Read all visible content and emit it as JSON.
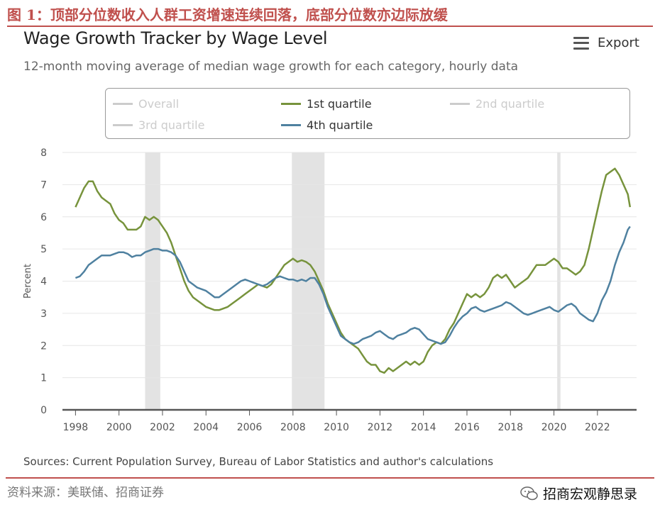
{
  "figure": {
    "title": "图 1：顶部分位数收入人群工资增速连续回落，底部分位数亦边际放缓",
    "source_note": "资料来源：美联储、招商证券",
    "watermark": "招商宏观静思录"
  },
  "toolbar": {
    "export_label": "Export"
  },
  "colors": {
    "q1": "#77933c",
    "q4": "#4f81a0",
    "recession": "#e3e3e3",
    "inactive": "#cccccc",
    "accent": "#c0504d"
  },
  "chart_data": {
    "type": "line",
    "title": "Wage Growth Tracker by Wage Level",
    "subtitle": "12-month moving average of median wage growth for each category, hourly data",
    "ylabel": "Percent",
    "xlabel": "",
    "ylim": [
      0,
      8
    ],
    "xlim": [
      1997.4,
      2023.8
    ],
    "yticks": [
      0,
      1,
      2,
      3,
      4,
      5,
      6,
      7,
      8
    ],
    "xticks": [
      1998,
      2000,
      2002,
      2004,
      2006,
      2008,
      2010,
      2012,
      2014,
      2016,
      2018,
      2020,
      2022
    ],
    "grid": true,
    "source": "Sources: Current Population Survey, Bureau of Labor Statistics and author's calculations",
    "recessions": [
      [
        2001.2,
        2001.9
      ],
      [
        2007.95,
        2009.45
      ],
      [
        2020.15,
        2020.3
      ]
    ],
    "legend": [
      {
        "name": "Overall",
        "active": false
      },
      {
        "name": "1st quartile",
        "active": true
      },
      {
        "name": "2nd quartile",
        "active": false
      },
      {
        "name": "3rd quartile",
        "active": false
      },
      {
        "name": "4th quartile",
        "active": true
      }
    ],
    "series": [
      {
        "name": "1st quartile",
        "points": [
          [
            1998.0,
            6.3
          ],
          [
            1998.2,
            6.6
          ],
          [
            1998.4,
            6.9
          ],
          [
            1998.6,
            7.1
          ],
          [
            1998.8,
            7.1
          ],
          [
            1999.0,
            6.8
          ],
          [
            1999.2,
            6.6
          ],
          [
            1999.4,
            6.5
          ],
          [
            1999.6,
            6.4
          ],
          [
            1999.8,
            6.1
          ],
          [
            2000.0,
            5.9
          ],
          [
            2000.2,
            5.8
          ],
          [
            2000.4,
            5.6
          ],
          [
            2000.6,
            5.6
          ],
          [
            2000.8,
            5.6
          ],
          [
            2001.0,
            5.7
          ],
          [
            2001.2,
            6.0
          ],
          [
            2001.4,
            5.9
          ],
          [
            2001.6,
            6.0
          ],
          [
            2001.8,
            5.9
          ],
          [
            2002.0,
            5.7
          ],
          [
            2002.2,
            5.5
          ],
          [
            2002.4,
            5.2
          ],
          [
            2002.6,
            4.8
          ],
          [
            2002.8,
            4.4
          ],
          [
            2003.0,
            4.0
          ],
          [
            2003.2,
            3.7
          ],
          [
            2003.4,
            3.5
          ],
          [
            2003.6,
            3.4
          ],
          [
            2003.8,
            3.3
          ],
          [
            2004.0,
            3.2
          ],
          [
            2004.2,
            3.15
          ],
          [
            2004.4,
            3.1
          ],
          [
            2004.6,
            3.1
          ],
          [
            2004.8,
            3.15
          ],
          [
            2005.0,
            3.2
          ],
          [
            2005.2,
            3.3
          ],
          [
            2005.4,
            3.4
          ],
          [
            2005.6,
            3.5
          ],
          [
            2005.8,
            3.6
          ],
          [
            2006.0,
            3.7
          ],
          [
            2006.2,
            3.8
          ],
          [
            2006.4,
            3.9
          ],
          [
            2006.6,
            3.85
          ],
          [
            2006.8,
            3.8
          ],
          [
            2007.0,
            3.9
          ],
          [
            2007.2,
            4.1
          ],
          [
            2007.4,
            4.3
          ],
          [
            2007.6,
            4.5
          ],
          [
            2007.8,
            4.6
          ],
          [
            2008.0,
            4.7
          ],
          [
            2008.2,
            4.6
          ],
          [
            2008.4,
            4.65
          ],
          [
            2008.6,
            4.6
          ],
          [
            2008.8,
            4.5
          ],
          [
            2009.0,
            4.3
          ],
          [
            2009.2,
            4.0
          ],
          [
            2009.4,
            3.7
          ],
          [
            2009.6,
            3.3
          ],
          [
            2009.8,
            3.0
          ],
          [
            2010.0,
            2.7
          ],
          [
            2010.2,
            2.4
          ],
          [
            2010.4,
            2.2
          ],
          [
            2010.6,
            2.1
          ],
          [
            2010.8,
            2.0
          ],
          [
            2011.0,
            1.9
          ],
          [
            2011.2,
            1.7
          ],
          [
            2011.4,
            1.5
          ],
          [
            2011.6,
            1.4
          ],
          [
            2011.8,
            1.4
          ],
          [
            2012.0,
            1.2
          ],
          [
            2012.2,
            1.15
          ],
          [
            2012.4,
            1.3
          ],
          [
            2012.6,
            1.2
          ],
          [
            2012.8,
            1.3
          ],
          [
            2013.0,
            1.4
          ],
          [
            2013.2,
            1.5
          ],
          [
            2013.4,
            1.4
          ],
          [
            2013.6,
            1.5
          ],
          [
            2013.8,
            1.4
          ],
          [
            2014.0,
            1.5
          ],
          [
            2014.2,
            1.8
          ],
          [
            2014.4,
            2.0
          ],
          [
            2014.6,
            2.1
          ],
          [
            2014.8,
            2.05
          ],
          [
            2015.0,
            2.2
          ],
          [
            2015.2,
            2.5
          ],
          [
            2015.4,
            2.7
          ],
          [
            2015.6,
            3.0
          ],
          [
            2015.8,
            3.3
          ],
          [
            2016.0,
            3.6
          ],
          [
            2016.2,
            3.5
          ],
          [
            2016.4,
            3.6
          ],
          [
            2016.6,
            3.5
          ],
          [
            2016.8,
            3.6
          ],
          [
            2017.0,
            3.8
          ],
          [
            2017.2,
            4.1
          ],
          [
            2017.4,
            4.2
          ],
          [
            2017.6,
            4.1
          ],
          [
            2017.8,
            4.2
          ],
          [
            2018.0,
            4.0
          ],
          [
            2018.2,
            3.8
          ],
          [
            2018.4,
            3.9
          ],
          [
            2018.6,
            4.0
          ],
          [
            2018.8,
            4.1
          ],
          [
            2019.0,
            4.3
          ],
          [
            2019.2,
            4.5
          ],
          [
            2019.4,
            4.5
          ],
          [
            2019.6,
            4.5
          ],
          [
            2019.8,
            4.6
          ],
          [
            2020.0,
            4.7
          ],
          [
            2020.2,
            4.6
          ],
          [
            2020.4,
            4.4
          ],
          [
            2020.6,
            4.4
          ],
          [
            2020.8,
            4.3
          ],
          [
            2021.0,
            4.2
          ],
          [
            2021.2,
            4.3
          ],
          [
            2021.4,
            4.5
          ],
          [
            2021.6,
            5.0
          ],
          [
            2021.8,
            5.6
          ],
          [
            2022.0,
            6.2
          ],
          [
            2022.2,
            6.8
          ],
          [
            2022.4,
            7.3
          ],
          [
            2022.6,
            7.4
          ],
          [
            2022.8,
            7.5
          ],
          [
            2023.0,
            7.3
          ],
          [
            2023.2,
            7.0
          ],
          [
            2023.4,
            6.7
          ],
          [
            2023.5,
            6.3
          ]
        ]
      },
      {
        "name": "4th quartile",
        "points": [
          [
            1998.0,
            4.1
          ],
          [
            1998.2,
            4.15
          ],
          [
            1998.4,
            4.3
          ],
          [
            1998.6,
            4.5
          ],
          [
            1998.8,
            4.6
          ],
          [
            1999.0,
            4.7
          ],
          [
            1999.2,
            4.8
          ],
          [
            1999.4,
            4.8
          ],
          [
            1999.6,
            4.8
          ],
          [
            1999.8,
            4.85
          ],
          [
            2000.0,
            4.9
          ],
          [
            2000.2,
            4.9
          ],
          [
            2000.4,
            4.85
          ],
          [
            2000.6,
            4.75
          ],
          [
            2000.8,
            4.8
          ],
          [
            2001.0,
            4.8
          ],
          [
            2001.2,
            4.9
          ],
          [
            2001.4,
            4.95
          ],
          [
            2001.6,
            5.0
          ],
          [
            2001.8,
            5.0
          ],
          [
            2002.0,
            4.95
          ],
          [
            2002.2,
            4.95
          ],
          [
            2002.4,
            4.9
          ],
          [
            2002.6,
            4.8
          ],
          [
            2002.8,
            4.6
          ],
          [
            2003.0,
            4.3
          ],
          [
            2003.2,
            4.0
          ],
          [
            2003.4,
            3.9
          ],
          [
            2003.6,
            3.8
          ],
          [
            2003.8,
            3.75
          ],
          [
            2004.0,
            3.7
          ],
          [
            2004.2,
            3.6
          ],
          [
            2004.4,
            3.5
          ],
          [
            2004.6,
            3.5
          ],
          [
            2004.8,
            3.6
          ],
          [
            2005.0,
            3.7
          ],
          [
            2005.2,
            3.8
          ],
          [
            2005.4,
            3.9
          ],
          [
            2005.6,
            4.0
          ],
          [
            2005.8,
            4.05
          ],
          [
            2006.0,
            4.0
          ],
          [
            2006.2,
            3.95
          ],
          [
            2006.4,
            3.9
          ],
          [
            2006.6,
            3.85
          ],
          [
            2006.8,
            3.9
          ],
          [
            2007.0,
            4.0
          ],
          [
            2007.2,
            4.1
          ],
          [
            2007.4,
            4.15
          ],
          [
            2007.6,
            4.1
          ],
          [
            2007.8,
            4.05
          ],
          [
            2008.0,
            4.05
          ],
          [
            2008.2,
            4.0
          ],
          [
            2008.4,
            4.05
          ],
          [
            2008.6,
            4.0
          ],
          [
            2008.8,
            4.1
          ],
          [
            2009.0,
            4.1
          ],
          [
            2009.2,
            3.9
          ],
          [
            2009.4,
            3.6
          ],
          [
            2009.6,
            3.2
          ],
          [
            2009.8,
            2.9
          ],
          [
            2010.0,
            2.6
          ],
          [
            2010.2,
            2.3
          ],
          [
            2010.4,
            2.2
          ],
          [
            2010.6,
            2.1
          ],
          [
            2010.8,
            2.05
          ],
          [
            2011.0,
            2.1
          ],
          [
            2011.2,
            2.2
          ],
          [
            2011.4,
            2.25
          ],
          [
            2011.6,
            2.3
          ],
          [
            2011.8,
            2.4
          ],
          [
            2012.0,
            2.45
          ],
          [
            2012.2,
            2.35
          ],
          [
            2012.4,
            2.25
          ],
          [
            2012.6,
            2.2
          ],
          [
            2012.8,
            2.3
          ],
          [
            2013.0,
            2.35
          ],
          [
            2013.2,
            2.4
          ],
          [
            2013.4,
            2.5
          ],
          [
            2013.6,
            2.55
          ],
          [
            2013.8,
            2.5
          ],
          [
            2014.0,
            2.35
          ],
          [
            2014.2,
            2.2
          ],
          [
            2014.4,
            2.15
          ],
          [
            2014.6,
            2.1
          ],
          [
            2014.8,
            2.05
          ],
          [
            2015.0,
            2.1
          ],
          [
            2015.2,
            2.3
          ],
          [
            2015.4,
            2.55
          ],
          [
            2015.6,
            2.75
          ],
          [
            2015.8,
            2.9
          ],
          [
            2016.0,
            3.0
          ],
          [
            2016.2,
            3.15
          ],
          [
            2016.4,
            3.2
          ],
          [
            2016.6,
            3.1
          ],
          [
            2016.8,
            3.05
          ],
          [
            2017.0,
            3.1
          ],
          [
            2017.2,
            3.15
          ],
          [
            2017.4,
            3.2
          ],
          [
            2017.6,
            3.25
          ],
          [
            2017.8,
            3.35
          ],
          [
            2018.0,
            3.3
          ],
          [
            2018.2,
            3.2
          ],
          [
            2018.4,
            3.1
          ],
          [
            2018.6,
            3.0
          ],
          [
            2018.8,
            2.95
          ],
          [
            2019.0,
            3.0
          ],
          [
            2019.2,
            3.05
          ],
          [
            2019.4,
            3.1
          ],
          [
            2019.6,
            3.15
          ],
          [
            2019.8,
            3.2
          ],
          [
            2020.0,
            3.1
          ],
          [
            2020.2,
            3.05
          ],
          [
            2020.4,
            3.15
          ],
          [
            2020.6,
            3.25
          ],
          [
            2020.8,
            3.3
          ],
          [
            2021.0,
            3.2
          ],
          [
            2021.2,
            3.0
          ],
          [
            2021.4,
            2.9
          ],
          [
            2021.6,
            2.8
          ],
          [
            2021.8,
            2.75
          ],
          [
            2022.0,
            3.0
          ],
          [
            2022.2,
            3.4
          ],
          [
            2022.4,
            3.65
          ],
          [
            2022.6,
            4.0
          ],
          [
            2022.8,
            4.5
          ],
          [
            2023.0,
            4.9
          ],
          [
            2023.2,
            5.2
          ],
          [
            2023.4,
            5.6
          ],
          [
            2023.5,
            5.7
          ]
        ]
      }
    ]
  }
}
